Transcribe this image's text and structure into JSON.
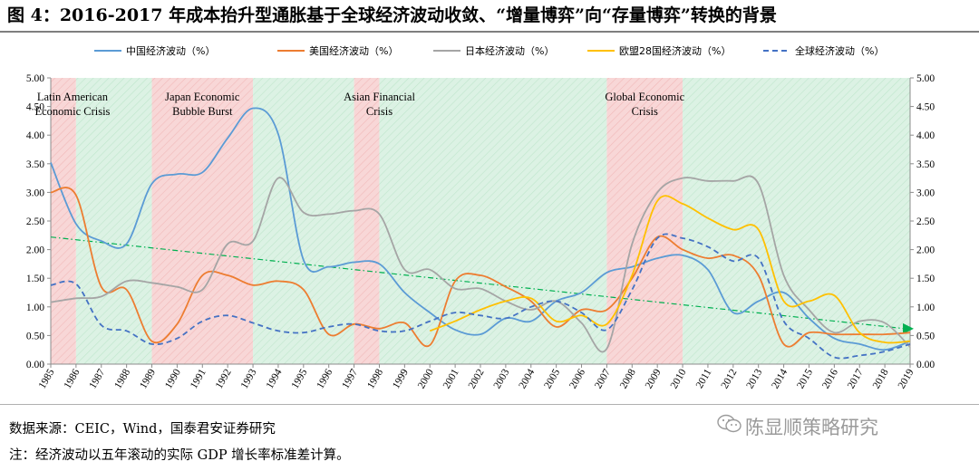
{
  "header": {
    "title": "图 4：2016-2017 年成本抬升型通胀基于全球经济波动收敛、“增量博弈”向“存量博弈”转换的背景"
  },
  "footer": {
    "source": "数据来源：CEIC，Wind，国泰君安证券研究",
    "note": "注：经济波动以五年滚动的实际 GDP 增长率标准差计算。",
    "watermark": "陈显顺策略研究"
  },
  "colors": {
    "china": "#5b9bd5",
    "us": "#ed7d31",
    "japan": "#a5a5a5",
    "europe": "#ffc000",
    "global": "#4472c4",
    "trend": "#00b050",
    "crisis_band": "#f8d7d7",
    "calm_band": "#dcf2e4"
  },
  "chart_data": {
    "type": "line",
    "title": "",
    "xlabel": "",
    "ylabel": "",
    "ylim": [
      0,
      5
    ],
    "yticks": [
      "0.00",
      "0.50",
      "1.00",
      "1.50",
      "2.00",
      "2.50",
      "3.00",
      "3.50",
      "4.00",
      "4.50",
      "5.00"
    ],
    "x": [
      "1985",
      "1986",
      "1987",
      "1988",
      "1989",
      "1990",
      "1991",
      "1992",
      "1993",
      "1994",
      "1995",
      "1996",
      "1997",
      "1998",
      "1999",
      "2000",
      "2001",
      "2002",
      "2003",
      "2004",
      "2005",
      "2006",
      "2007",
      "2008",
      "2009",
      "2010",
      "2011",
      "2012",
      "2013",
      "2014",
      "2015",
      "2016",
      "2017",
      "2018",
      "2019"
    ],
    "legend": [
      "中国经济波动（%）",
      "美国经济波动（%）",
      "日本经济波动（%）",
      "欧盟28国经济波动（%）",
      "全球经济波动（%）"
    ],
    "series": [
      {
        "name": "中国经济波动（%）",
        "key": "china",
        "style": "solid",
        "values": [
          3.52,
          2.45,
          2.15,
          2.1,
          3.15,
          3.32,
          3.35,
          3.95,
          4.47,
          4.02,
          1.82,
          1.7,
          1.78,
          1.75,
          1.25,
          0.9,
          0.6,
          0.52,
          0.8,
          0.75,
          1.1,
          1.25,
          1.6,
          1.7,
          1.85,
          1.9,
          1.65,
          0.9,
          1.1,
          1.25,
          0.8,
          0.45,
          0.35,
          0.25,
          0.4
        ]
      },
      {
        "name": "美国经济波动（%）",
        "key": "us",
        "style": "solid",
        "values": [
          3.0,
          2.95,
          1.35,
          1.3,
          0.4,
          0.7,
          1.55,
          1.55,
          1.38,
          1.45,
          1.3,
          0.52,
          0.7,
          0.62,
          0.72,
          0.33,
          1.45,
          1.55,
          1.35,
          1.1,
          0.65,
          0.95,
          0.95,
          1.5,
          2.22,
          2.0,
          1.85,
          1.9,
          1.55,
          0.35,
          0.55,
          0.52,
          0.52,
          0.52,
          0.55
        ]
      },
      {
        "name": "日本经济波动（%）",
        "key": "japan",
        "style": "solid",
        "values": [
          1.08,
          1.15,
          1.18,
          1.45,
          1.42,
          1.35,
          1.3,
          2.1,
          2.15,
          3.25,
          2.65,
          2.62,
          2.68,
          2.62,
          1.65,
          1.65,
          1.32,
          1.32,
          1.1,
          0.95,
          1.1,
          0.72,
          0.27,
          2.1,
          3.0,
          3.25,
          3.2,
          3.2,
          3.15,
          1.55,
          0.95,
          0.55,
          0.75,
          0.72,
          0.3
        ]
      },
      {
        "name": "欧盟28国经济波动（%）",
        "key": "europe",
        "style": "solid",
        "values": [
          null,
          null,
          null,
          null,
          null,
          null,
          null,
          null,
          null,
          null,
          null,
          null,
          null,
          null,
          null,
          0.58,
          0.75,
          0.95,
          1.1,
          1.15,
          0.75,
          0.85,
          0.7,
          1.55,
          2.85,
          2.8,
          2.55,
          2.35,
          2.35,
          1.1,
          1.1,
          1.2,
          0.55,
          0.38,
          0.4
        ]
      },
      {
        "name": "全球经济波动（%）",
        "key": "global",
        "style": "dashed",
        "values": [
          1.38,
          1.4,
          0.68,
          0.58,
          0.35,
          0.45,
          0.75,
          0.85,
          0.72,
          0.58,
          0.55,
          0.65,
          0.7,
          0.58,
          0.58,
          0.75,
          0.9,
          0.85,
          0.8,
          1.0,
          1.1,
          0.9,
          0.6,
          1.3,
          2.2,
          2.2,
          2.05,
          1.8,
          1.85,
          0.75,
          0.45,
          0.12,
          0.15,
          0.22,
          0.35
        ]
      }
    ],
    "trendline": {
      "from": 2.22,
      "to": 0.62
    },
    "bands": [
      {
        "start": 0,
        "end": 1,
        "kind": "crisis",
        "label": "Latin American Economic Crisis",
        "lines": [
          "Latin American",
          "Economic Crisis"
        ]
      },
      {
        "start": 1,
        "end": 4,
        "kind": "calm"
      },
      {
        "start": 4,
        "end": 8,
        "kind": "crisis",
        "label": "Japan Economic Bubble Burst",
        "lines": [
          "Japan Economic",
          "Bubble Burst"
        ]
      },
      {
        "start": 8,
        "end": 12,
        "kind": "calm"
      },
      {
        "start": 12,
        "end": 13,
        "kind": "crisis",
        "label": "Asian Financial Crisis",
        "lines": [
          "Asian Financial",
          "Crisis"
        ]
      },
      {
        "start": 13,
        "end": 22,
        "kind": "calm"
      },
      {
        "start": 22,
        "end": 25,
        "kind": "crisis",
        "label": "Global Economic Crisis",
        "lines": [
          "Global Economic",
          "Crisis"
        ]
      },
      {
        "start": 25,
        "end": 34,
        "kind": "calm"
      }
    ]
  }
}
